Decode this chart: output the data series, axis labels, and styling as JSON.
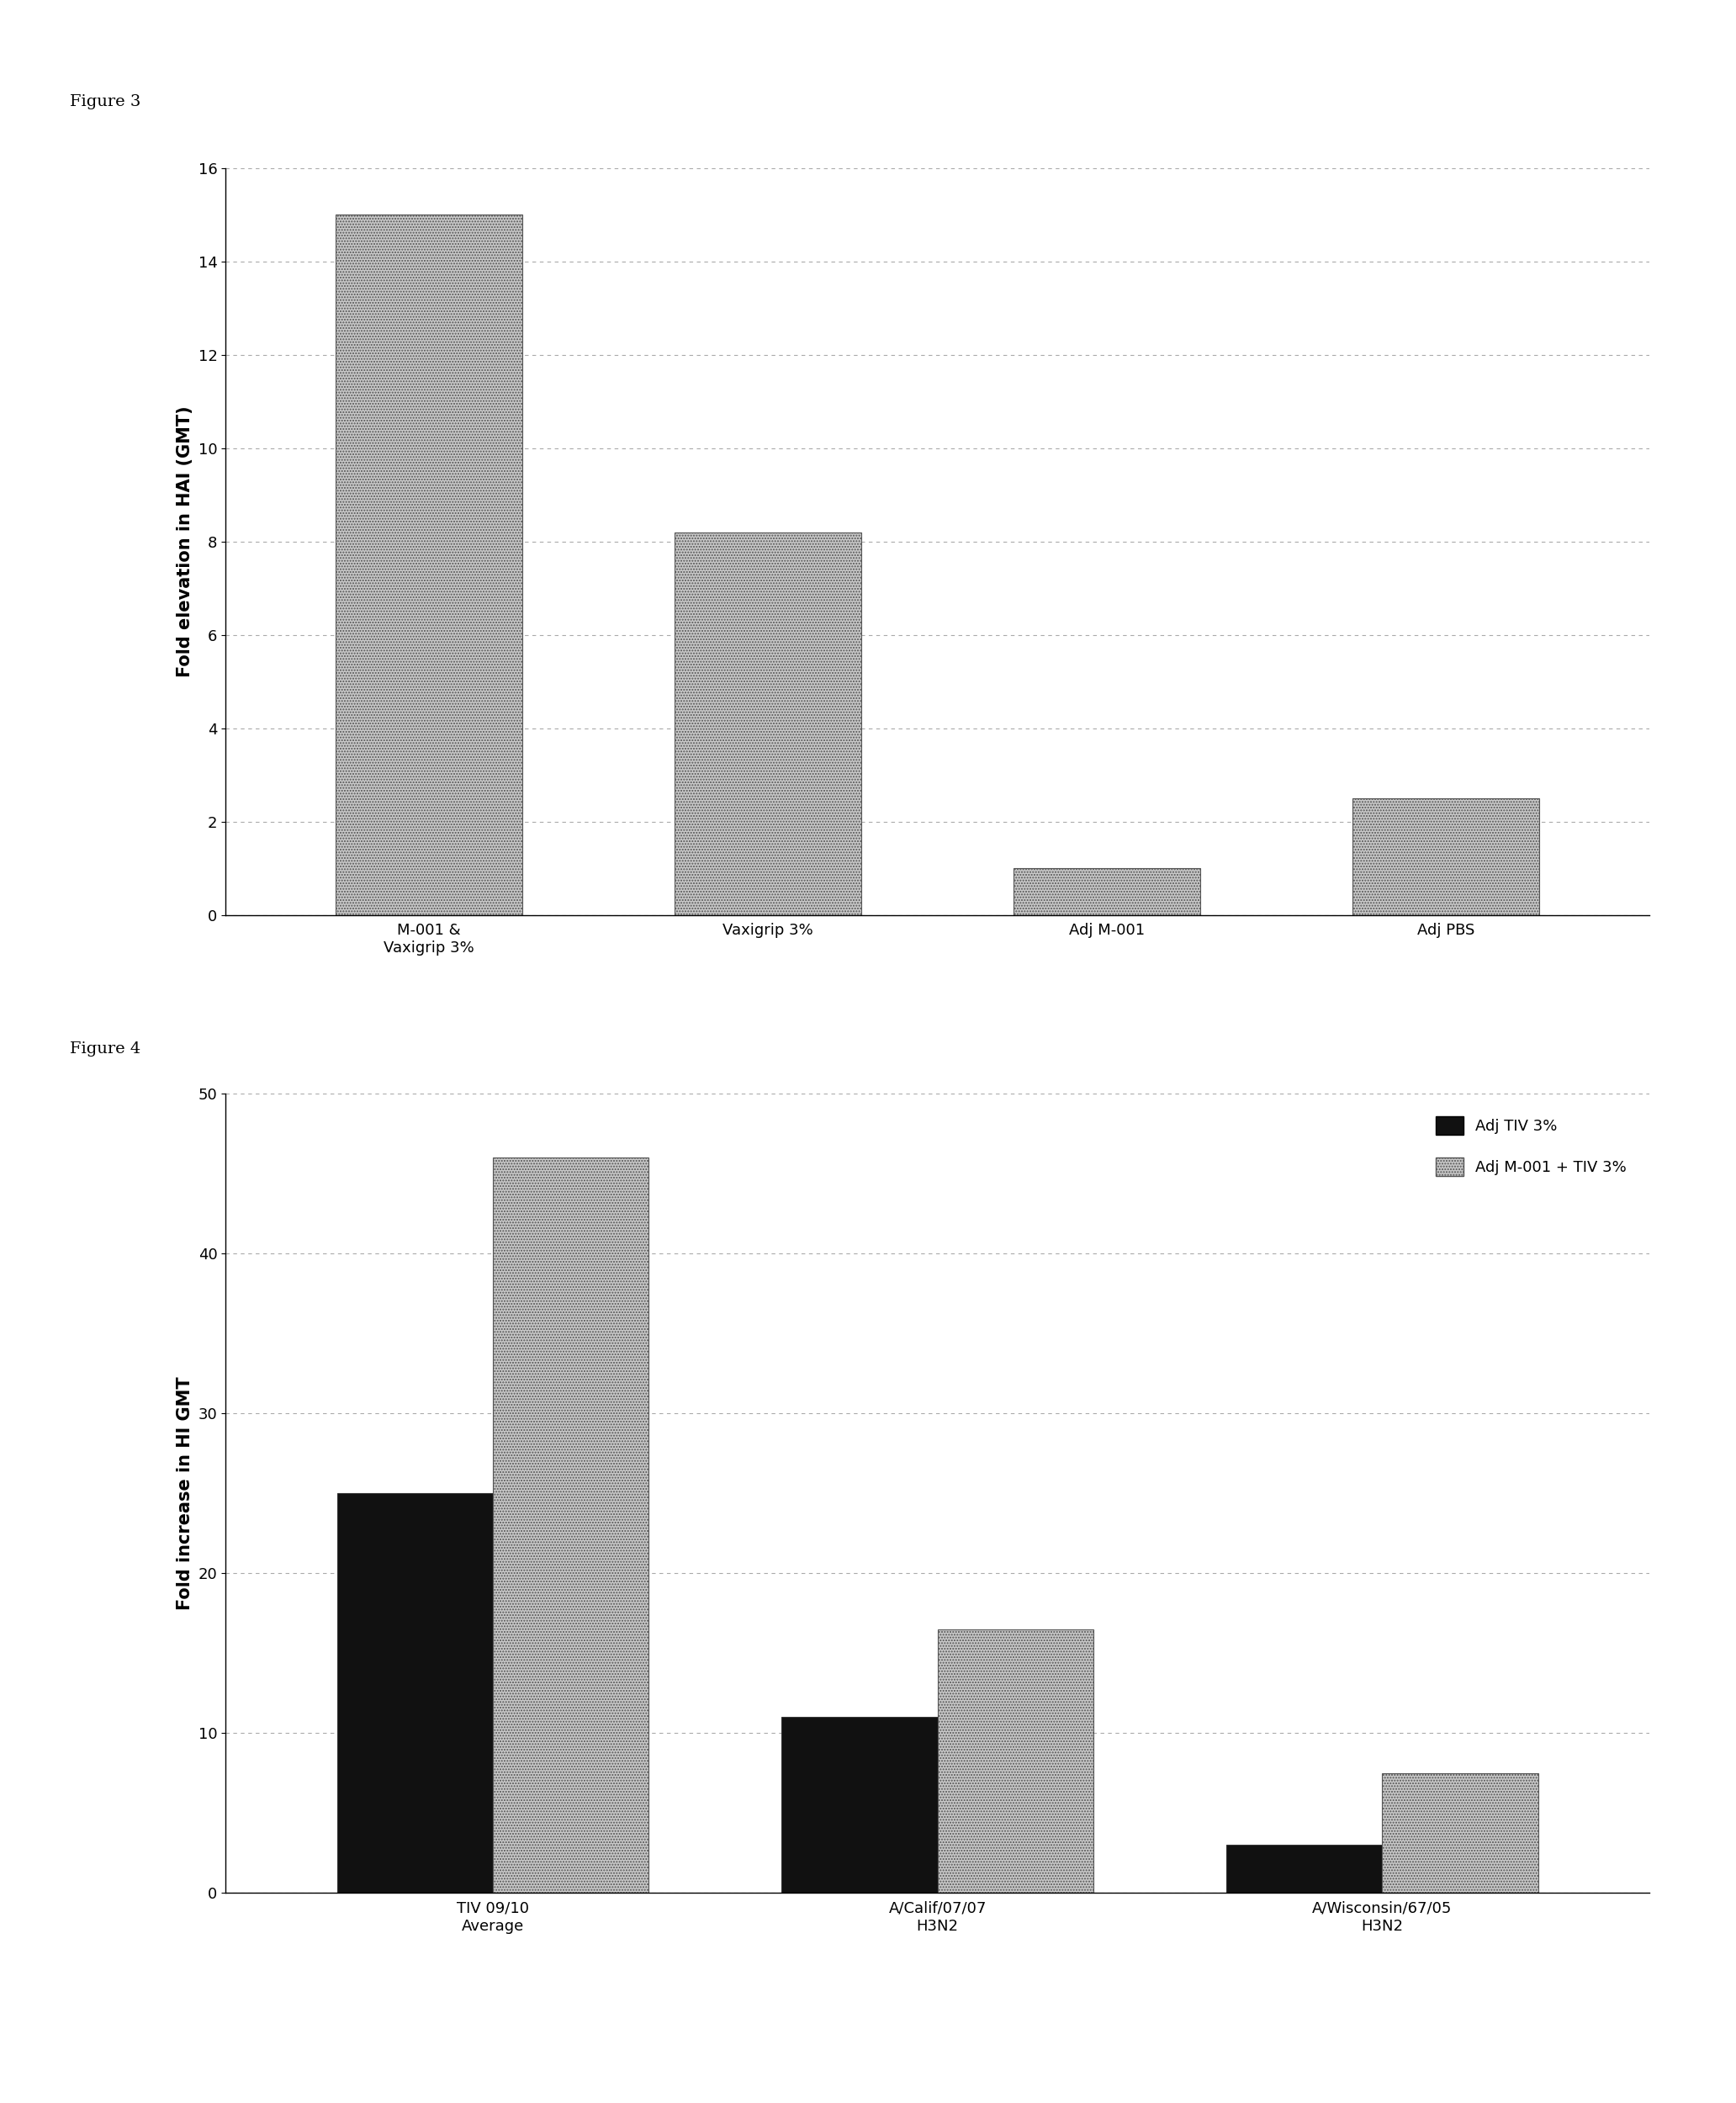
{
  "fig3": {
    "title": "Figure 3",
    "ylabel": "Fold elevation in HAI (GMT)",
    "categories": [
      "M-001 &\nVaxigrip 3%",
      "Vaxigrip 3%",
      "Adj M-001",
      "Adj PBS"
    ],
    "values": [
      15.0,
      8.2,
      1.0,
      2.5
    ],
    "ylim": [
      0,
      16
    ],
    "yticks": [
      0,
      2,
      4,
      6,
      8,
      10,
      12,
      14,
      16
    ],
    "bar_color": "#c8c8c8",
    "bar_hatch": ".....",
    "grid_color": "#aaaaaa",
    "bar_width": 0.55
  },
  "fig4": {
    "title": "Figure 4",
    "ylabel": "Fold increase in HI GMT",
    "categories": [
      "TIV 09/10\nAverage",
      "A/Calif/07/07\nH3N2",
      "A/Wisconsin/67/05\nH3N2"
    ],
    "series1_values": [
      25.0,
      11.0,
      3.0
    ],
    "series2_values": [
      46.0,
      16.5,
      7.5
    ],
    "ylim": [
      0,
      50
    ],
    "yticks": [
      0,
      10,
      20,
      30,
      40,
      50
    ],
    "series1_color": "#111111",
    "series2_color": "#c8c8c8",
    "series2_hatch": ".....",
    "legend1_label": "Adj TIV 3%",
    "legend2_label": "Adj M-001 + TIV 3%",
    "grid_color": "#aaaaaa",
    "bar_width": 0.35
  },
  "background_color": "#ffffff",
  "title_fontsize": 14,
  "tick_fontsize": 13,
  "ylabel_fontsize": 15
}
